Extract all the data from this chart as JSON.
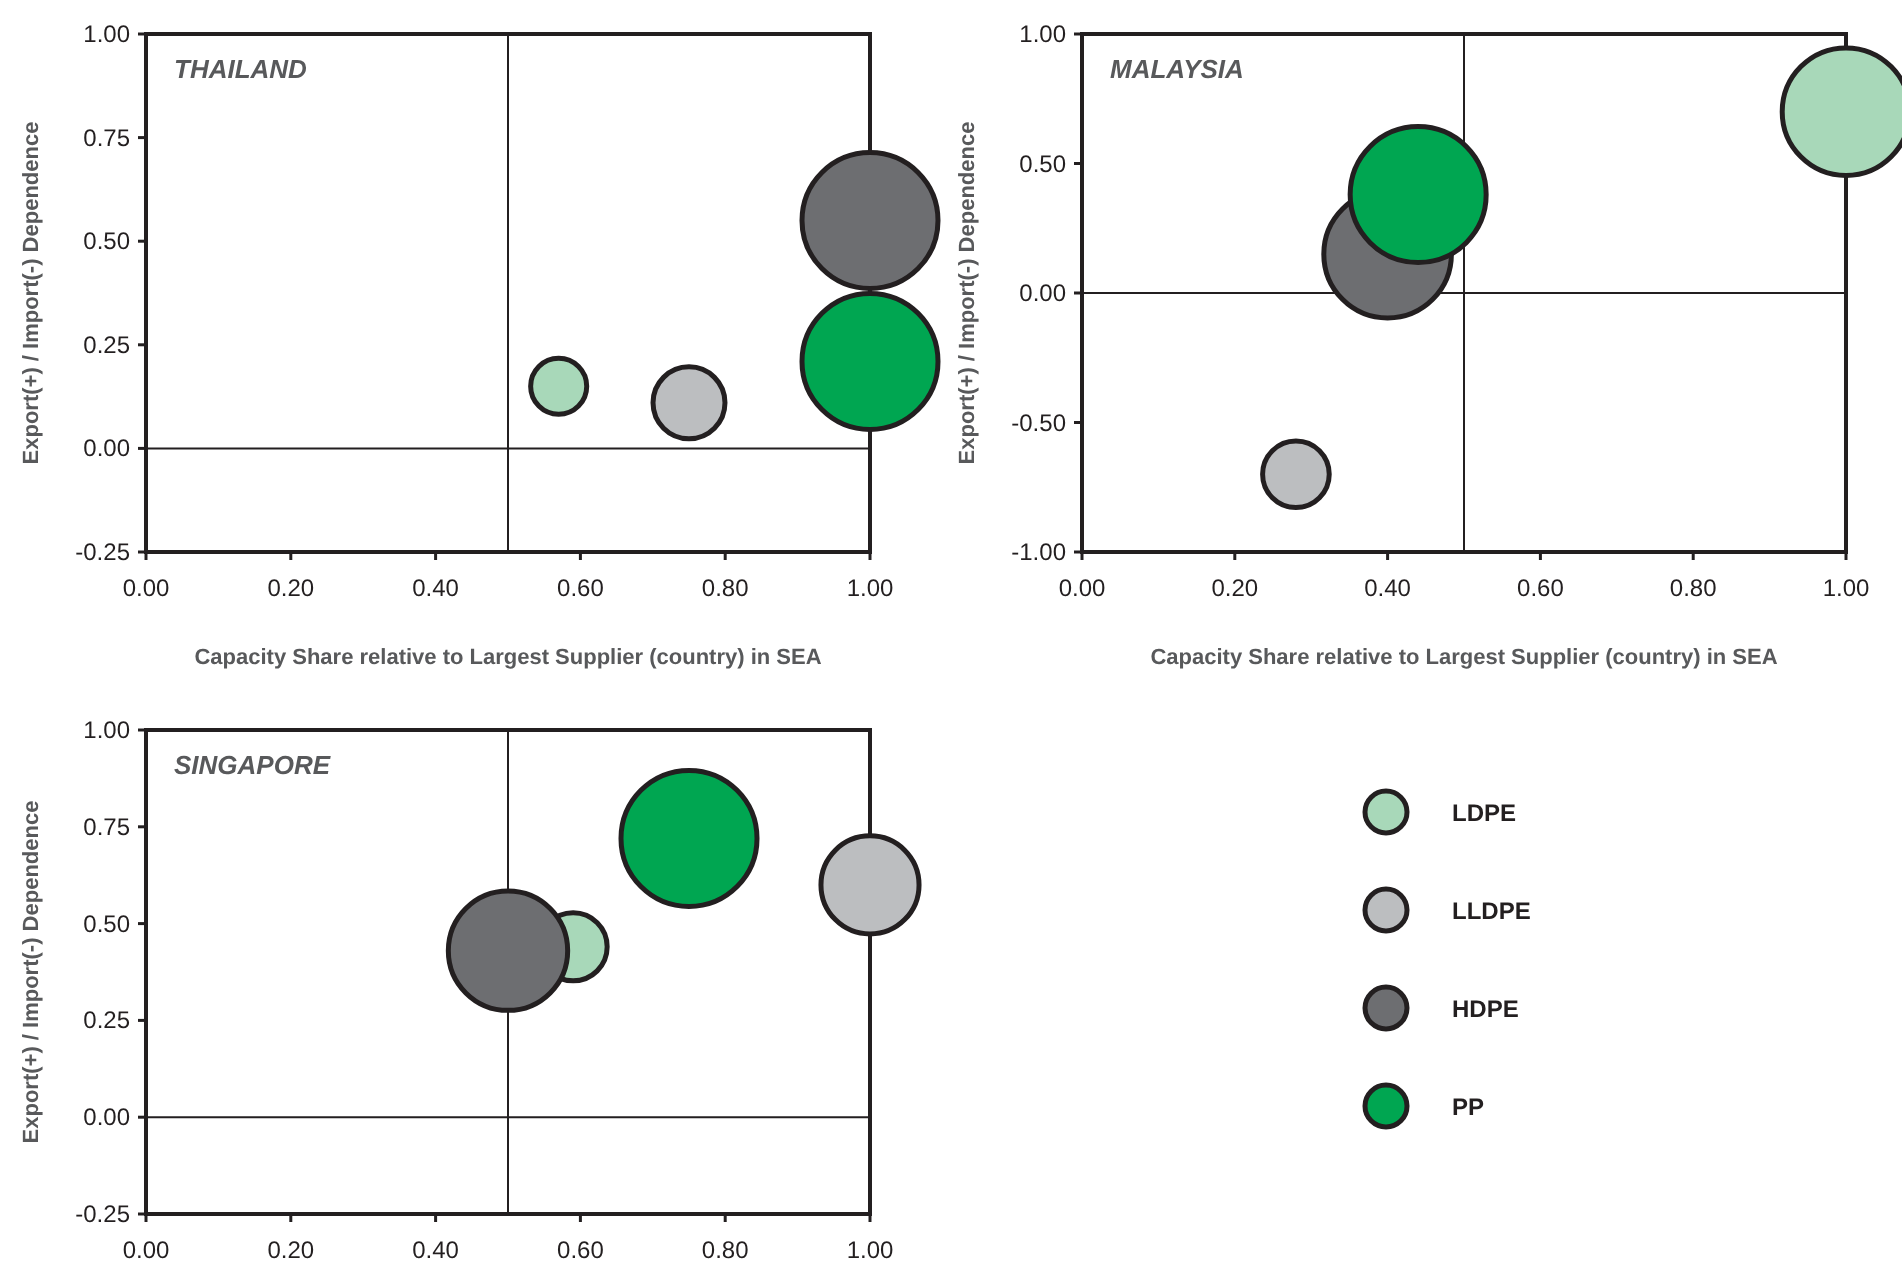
{
  "chart_data": [
    {
      "type": "bubble",
      "title": "THAILAND",
      "xlabel": "Capacity Share relative to Largest Supplier (country) in SEA",
      "ylabel": "Export(+) / Import(-) Dependence",
      "xlim": [
        0,
        1
      ],
      "ylim": [
        -0.25,
        1
      ],
      "xticks": [
        {
          "value": 0,
          "label": "0.00"
        },
        {
          "value": 0.2,
          "label": "0.20"
        },
        {
          "value": 0.4,
          "label": "0.40"
        },
        {
          "value": 0.6,
          "label": "0.60"
        },
        {
          "value": 0.8,
          "label": "0.80"
        },
        {
          "value": 1,
          "label": "1.00"
        }
      ],
      "yticks": [
        {
          "value": -0.25,
          "label": "-0.25"
        },
        {
          "value": 0,
          "label": "0.00"
        },
        {
          "value": 0.25,
          "label": "0.25"
        },
        {
          "value": 0.5,
          "label": "0.50"
        },
        {
          "value": 0.75,
          "label": "0.75"
        },
        {
          "value": 1,
          "label": "1.00"
        }
      ],
      "ref_lines": [
        {
          "axis": "x",
          "value": 0.5
        },
        {
          "axis": "y",
          "value": 0
        }
      ],
      "legend": false,
      "series": [
        {
          "color": "#a8d8b9",
          "x": [
            0.57
          ],
          "values": [
            0.15
          ],
          "sizes": [
            0.17
          ]
        },
        {
          "color": "#bcbec0",
          "x": [
            0.75
          ],
          "values": [
            0.11
          ],
          "sizes": [
            0.28
          ]
        },
        {
          "color": "#6d6e71",
          "x": [
            1.0
          ],
          "values": [
            0.55
          ],
          "sizes": [
            1
          ]
        },
        {
          "color": "#00a651",
          "x": [
            1.0
          ],
          "values": [
            0.21
          ],
          "sizes": [
            1
          ]
        }
      ]
    },
    {
      "type": "bubble",
      "title": "MALAYSIA",
      "xlabel": "Capacity Share relative to Largest Supplier (country) in SEA",
      "ylabel": "Export(+) / Import(-) Dependence",
      "xlim": [
        0,
        1
      ],
      "ylim": [
        -1,
        1
      ],
      "xticks": [
        {
          "value": 0,
          "label": "0.00"
        },
        {
          "value": 0.2,
          "label": "0.20"
        },
        {
          "value": 0.4,
          "label": "0.40"
        },
        {
          "value": 0.6,
          "label": "0.60"
        },
        {
          "value": 0.8,
          "label": "0.80"
        },
        {
          "value": 1,
          "label": "1.00"
        }
      ],
      "yticks": [
        {
          "value": -1,
          "label": "-1.00"
        },
        {
          "value": -0.5,
          "label": "-0.50"
        },
        {
          "value": 0,
          "label": "0.00"
        },
        {
          "value": 0.5,
          "label": "0.50"
        },
        {
          "value": 1,
          "label": "1.00"
        }
      ],
      "ref_lines": [
        {
          "axis": "x",
          "value": 0.5
        },
        {
          "axis": "y",
          "value": 0
        }
      ],
      "legend": false,
      "series": [
        {
          "color": "#a8d8b9",
          "x": [
            1.0
          ],
          "values": [
            0.7
          ],
          "sizes": [
            0.88
          ]
        },
        {
          "color": "#bcbec0",
          "x": [
            0.28
          ],
          "values": [
            -0.7
          ],
          "sizes": [
            0.24
          ]
        },
        {
          "color": "#6d6e71",
          "x": [
            0.4
          ],
          "values": [
            0.15
          ],
          "sizes": [
            0.88
          ]
        },
        {
          "color": "#00a651",
          "x": [
            0.44
          ],
          "values": [
            0.38
          ],
          "sizes": [
            1
          ]
        }
      ]
    },
    {
      "type": "bubble",
      "title": "SINGAPORE",
      "ylabel": "Export(+) / Import(-) Dependence",
      "xlim": [
        0,
        1
      ],
      "ylim": [
        -0.25,
        1
      ],
      "xticks": [
        {
          "value": 0,
          "label": "0.00"
        },
        {
          "value": 0.2,
          "label": "0.20"
        },
        {
          "value": 0.4,
          "label": "0.40"
        },
        {
          "value": 0.6,
          "label": "0.60"
        },
        {
          "value": 0.8,
          "label": "0.80"
        },
        {
          "value": 1,
          "label": "1.00"
        }
      ],
      "yticks": [
        {
          "value": -0.25,
          "label": "-0.25"
        },
        {
          "value": 0,
          "label": "0.00"
        },
        {
          "value": 0.25,
          "label": "0.25"
        },
        {
          "value": 0.5,
          "label": "0.50"
        },
        {
          "value": 0.75,
          "label": "0.75"
        },
        {
          "value": 1,
          "label": "1.00"
        }
      ],
      "ref_lines": [
        {
          "axis": "x",
          "value": 0.5
        },
        {
          "axis": "y",
          "value": 0
        }
      ],
      "legend": "right",
      "series": [
        {
          "name": "LDPE",
          "color": "#a8d8b9",
          "x": [
            0.59
          ],
          "values": [
            0.44
          ],
          "sizes": [
            0.25
          ]
        },
        {
          "name": "LLDPE",
          "color": "#bcbec0",
          "x": [
            1.0
          ],
          "values": [
            0.6
          ],
          "sizes": [
            0.52
          ]
        },
        {
          "name": "HDPE",
          "color": "#6d6e71",
          "x": [
            0.5
          ],
          "values": [
            0.43
          ],
          "sizes": [
            0.77
          ]
        },
        {
          "name": "PP",
          "color": "#00a651",
          "x": [
            0.75
          ],
          "values": [
            0.72
          ],
          "sizes": [
            1
          ]
        }
      ]
    }
  ]
}
